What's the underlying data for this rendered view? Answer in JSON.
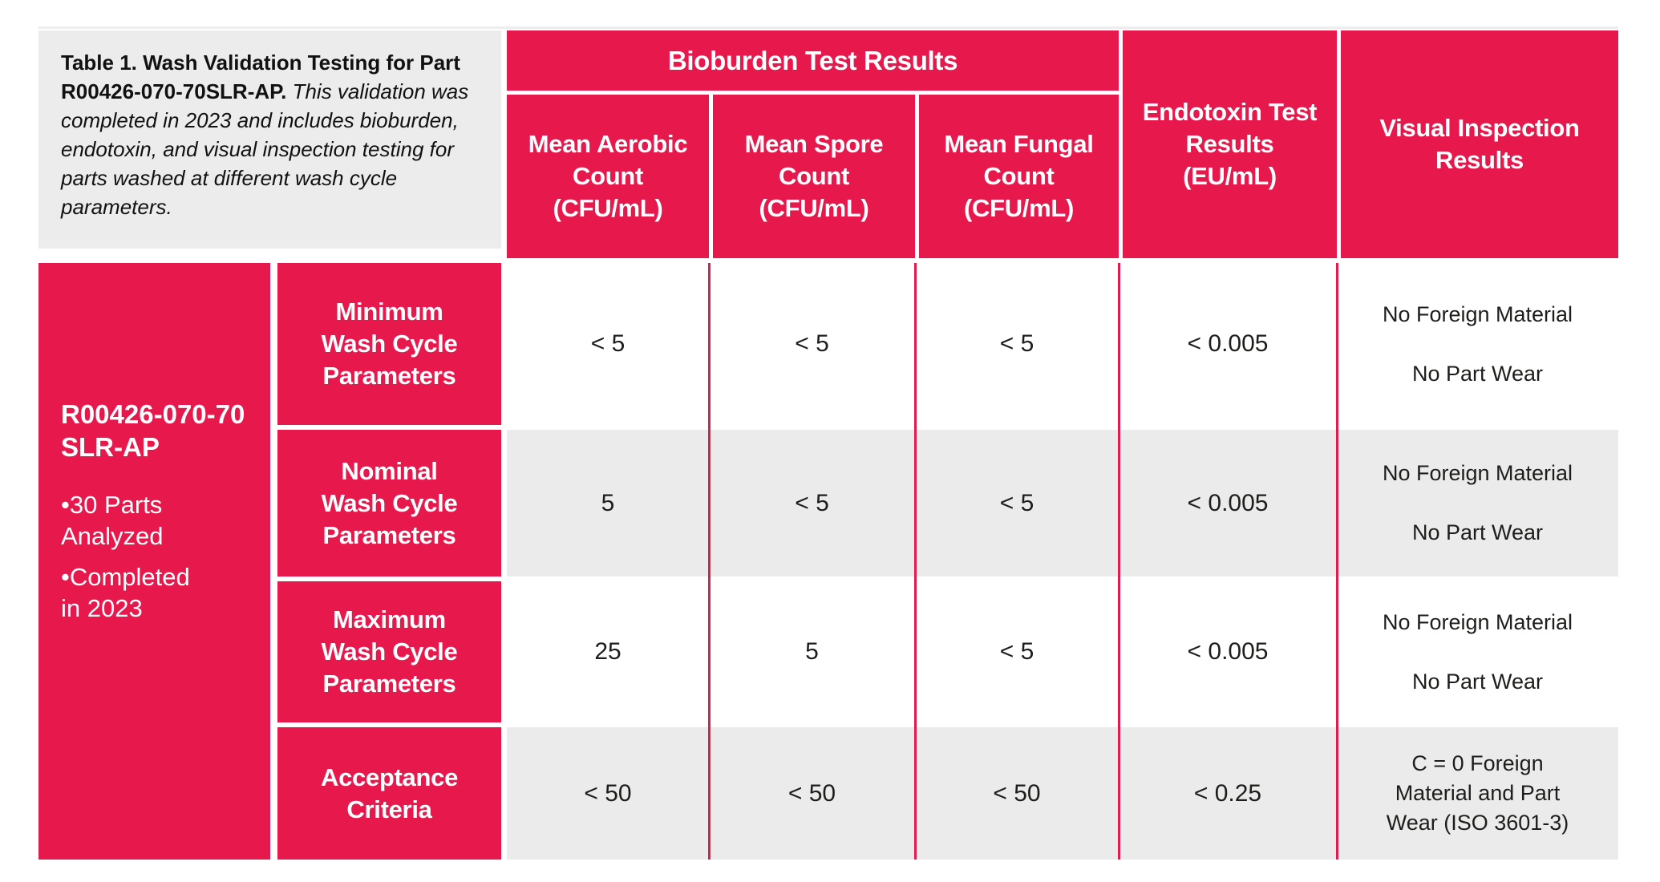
{
  "colors": {
    "accent_red": "#e7184c",
    "caption_bg": "#ececec",
    "row_alt_bg": "#ebebeb",
    "page_bg": "#ffffff",
    "data_text": "#1d1d1b",
    "header_text": "#ffffff"
  },
  "caption": {
    "title_bold": "Table 1. Wash Validation Testing for Part R00426-070-70SLR-AP.",
    "note_italic": "This validation was completed in 2023 and includes bioburden, endotoxin, and visual inspection testing for parts washed at different wash cycle parameters."
  },
  "table": {
    "group_header": "Bioburden Test Results",
    "columns": [
      {
        "header": "Mean Aerobic\nCount\n(CFU/mL)"
      },
      {
        "header": "Mean Spore\nCount\n(CFU/mL)"
      },
      {
        "header": "Mean Fungal\nCount\n(CFU/mL)"
      },
      {
        "header": "Endotoxin Test\nResults\n(EU/mL)"
      },
      {
        "header": "Visual Inspection\nResults"
      }
    ],
    "part": {
      "number": "R00426-070-70\nSLR-AP",
      "notes": [
        "•30 Parts\nAnalyzed",
        "•Completed\nin 2023"
      ]
    },
    "rows": [
      {
        "label": "Minimum\nWash Cycle\nParameters",
        "aerobic": "< 5",
        "spore": "< 5",
        "fungal": "< 5",
        "endotoxin": "< 0.005",
        "visual": "No Foreign Material\n\nNo Part Wear"
      },
      {
        "label": "Nominal\nWash Cycle\nParameters",
        "aerobic": "5",
        "spore": "< 5",
        "fungal": "< 5",
        "endotoxin": "< 0.005",
        "visual": "No Foreign Material\n\nNo Part Wear"
      },
      {
        "label": "Maximum\nWash Cycle\nParameters",
        "aerobic": "25",
        "spore": "5",
        "fungal": "< 5",
        "endotoxin": "< 0.005",
        "visual": "No Foreign Material\n\nNo Part Wear"
      },
      {
        "label": "Acceptance\nCriteria",
        "aerobic": "< 50",
        "spore": "< 50",
        "fungal": "< 50",
        "endotoxin": "< 0.25",
        "visual": "C = 0 Foreign\nMaterial and Part\nWear (ISO 3601-3)"
      }
    ]
  }
}
